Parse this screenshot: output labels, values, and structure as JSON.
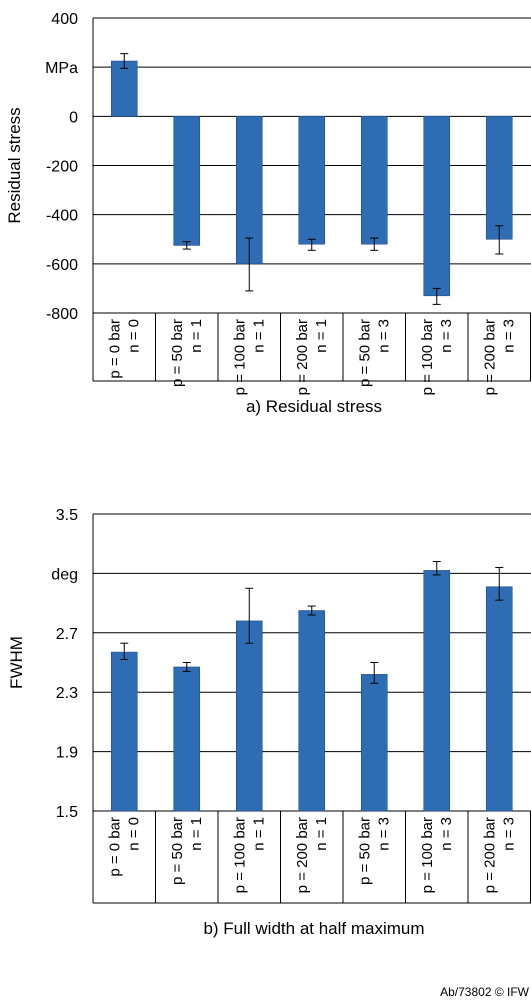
{
  "chart_data": [
    {
      "type": "bar",
      "caption": "a) Residual stress",
      "ylabel": "Residual stress",
      "unit_label": "MPa",
      "ylim": [
        -800,
        400
      ],
      "ytick_labels": [
        "400",
        "",
        "0",
        "-200",
        "-400",
        "-600",
        "-800"
      ],
      "ytick_values": [
        400,
        200,
        0,
        -200,
        -400,
        -600,
        -800
      ],
      "grid": true,
      "bar_color": "#2e6db4",
      "categories": [
        [
          "p = 0 bar",
          "n = 0"
        ],
        [
          "p = 50 bar",
          "n = 1"
        ],
        [
          "p = 100 bar",
          "n = 1"
        ],
        [
          "p = 200 bar",
          "n = 1"
        ],
        [
          "p = 50 bar",
          "n = 3"
        ],
        [
          "p = 100 bar",
          "n = 3"
        ],
        [
          "p = 200 bar",
          "n = 3"
        ]
      ],
      "values": [
        225,
        -525,
        -600,
        -520,
        -520,
        -730,
        -500
      ],
      "error_low": [
        195,
        -540,
        -710,
        -545,
        -545,
        -765,
        -560
      ],
      "error_high": [
        255,
        -510,
        -495,
        -500,
        -495,
        -700,
        -445
      ]
    },
    {
      "type": "bar",
      "caption": "b) Full width at half maximum",
      "ylabel": "FWHM",
      "unit_label": "deg",
      "ylim": [
        1.5,
        3.5
      ],
      "ytick_labels": [
        "3.5",
        "",
        "2.7",
        "2.3",
        "1.9",
        "1.5"
      ],
      "ytick_values": [
        3.5,
        3.1,
        2.7,
        2.3,
        1.9,
        1.5
      ],
      "grid": true,
      "bar_color": "#2e6db4",
      "categories": [
        [
          "p = 0 bar",
          "n = 0"
        ],
        [
          "p = 50 bar",
          "n = 1"
        ],
        [
          "p = 100 bar",
          "n = 1"
        ],
        [
          "p = 200 bar",
          "n = 1"
        ],
        [
          "p = 50 bar",
          "n = 3"
        ],
        [
          "p = 100 bar",
          "n = 3"
        ],
        [
          "p = 200 bar",
          "n = 3"
        ]
      ],
      "values": [
        2.57,
        2.47,
        2.78,
        2.85,
        2.42,
        3.12,
        3.01
      ],
      "error_low": [
        2.52,
        2.44,
        2.63,
        2.82,
        2.36,
        3.09,
        2.92
      ],
      "error_high": [
        2.63,
        2.5,
        3.0,
        2.88,
        2.5,
        3.18,
        3.14
      ]
    }
  ],
  "credit": "Ab/73802 © IFW"
}
